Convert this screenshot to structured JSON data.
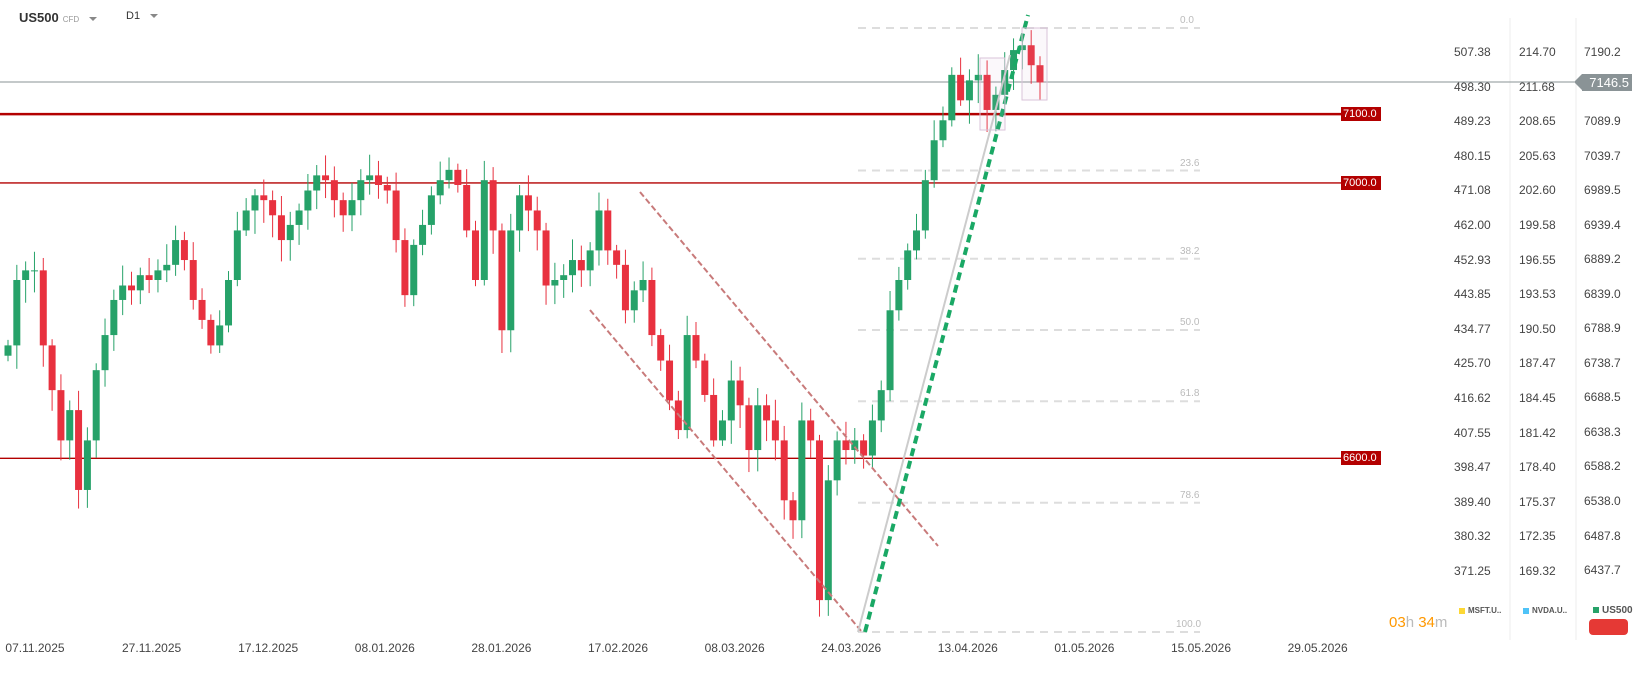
{
  "header": {
    "symbol": "US500",
    "symbol_type": "CFD",
    "timeframe": "D1"
  },
  "colors": {
    "up": "#26a269",
    "down": "#e8313f",
    "level": "#b30000",
    "current": "#8a9396",
    "trend": "#1aa865",
    "channel": "#c87a7a",
    "timer": "#ff9800"
  },
  "chart_data": {
    "type": "candlestick",
    "instrument": "US500",
    "closes": [
      6764,
      6859,
      6873,
      6873,
      6764,
      6699,
      6626,
      6670,
      6554,
      6626,
      6728,
      6779,
      6830,
      6851,
      6844,
      6866,
      6859,
      6873,
      6881,
      6917,
      6888,
      6830,
      6801,
      6764,
      6793,
      6859,
      6931,
      6960,
      6982,
      6975,
      6953,
      6917,
      6939,
      6960,
      6989,
      7011,
      7004,
      6975,
      6953,
      6975,
      7004,
      7011,
      6997,
      6989,
      6917,
      6837,
      6910,
      6939,
      6982,
      7004,
      7019,
      6997,
      6931,
      6859,
      7004,
      6931,
      6786,
      6931,
      6982,
      6960,
      6931,
      6851,
      6859,
      6866,
      6888,
      6873,
      6902,
      6960,
      6902,
      6881,
      6815,
      6844,
      6859,
      6779,
      6742,
      6684,
      6641,
      6779,
      6742,
      6692,
      6626,
      6655,
      6713,
      6677,
      6612,
      6677,
      6655,
      6626,
      6539,
      6510,
      6655,
      6626,
      6394,
      6568,
      6626,
      6612,
      6626,
      6604,
      6655,
      6699,
      6815,
      6859,
      6902,
      6931,
      7004,
      7062,
      7091,
      7157,
      7120,
      7149,
      7157,
      7106,
      7128,
      7164,
      7193,
      7200,
      7171,
      7146
    ],
    "current_price": 7146.5,
    "y_axis_right": [
      "7190.2",
      "7089.9",
      "7039.7",
      "6989.5",
      "6939.4",
      "6889.2",
      "6839.0",
      "6788.9",
      "6738.7",
      "6688.5",
      "6638.3",
      "6588.2",
      "6538.0",
      "6487.8",
      "6437.7"
    ],
    "y_axis_right_values": [
      7190.2,
      7089.9,
      7039.7,
      6989.5,
      6939.4,
      6889.2,
      6839.0,
      6788.9,
      6738.7,
      6688.5,
      6638.3,
      6588.2,
      6538.0,
      6487.8,
      6437.7
    ],
    "y_axis_msft": [
      "507.38",
      "498.30",
      "489.23",
      "480.15",
      "471.08",
      "462.00",
      "452.93",
      "443.85",
      "434.77",
      "425.70",
      "416.62",
      "407.55",
      "398.47",
      "389.40",
      "380.32",
      "371.25"
    ],
    "y_axis_nvda": [
      "214.70",
      "211.68",
      "208.65",
      "205.63",
      "202.60",
      "199.58",
      "196.55",
      "193.53",
      "190.50",
      "187.47",
      "184.45",
      "181.42",
      "178.40",
      "175.37",
      "172.35",
      "169.32"
    ],
    "x_axis": [
      "07.11.2025",
      "27.11.2025",
      "17.12.2025",
      "08.01.2026",
      "28.01.2026",
      "17.02.2026",
      "08.03.2026",
      "24.03.2026",
      "13.04.2026",
      "01.05.2026",
      "15.05.2026",
      "29.05.2026"
    ],
    "levels": [
      {
        "label": "7100.0",
        "value": 7100
      },
      {
        "label": "7000.0",
        "value": 7000
      },
      {
        "label": "6600.0",
        "value": 6600
      }
    ],
    "fibonacci": [
      "0.0",
      "23.6",
      "38.2",
      "50.0",
      "61.8",
      "78.6",
      "100.0"
    ],
    "legend": [
      {
        "name": "MSFT.U..",
        "color": "#fdd835"
      },
      {
        "name": "NVDA.U..",
        "color": "#4fc3f7"
      },
      {
        "name": "US500",
        "color": "#26a269"
      }
    ]
  },
  "timer": {
    "hours": "03",
    "h": "h",
    "minutes": "34",
    "m": "m"
  }
}
